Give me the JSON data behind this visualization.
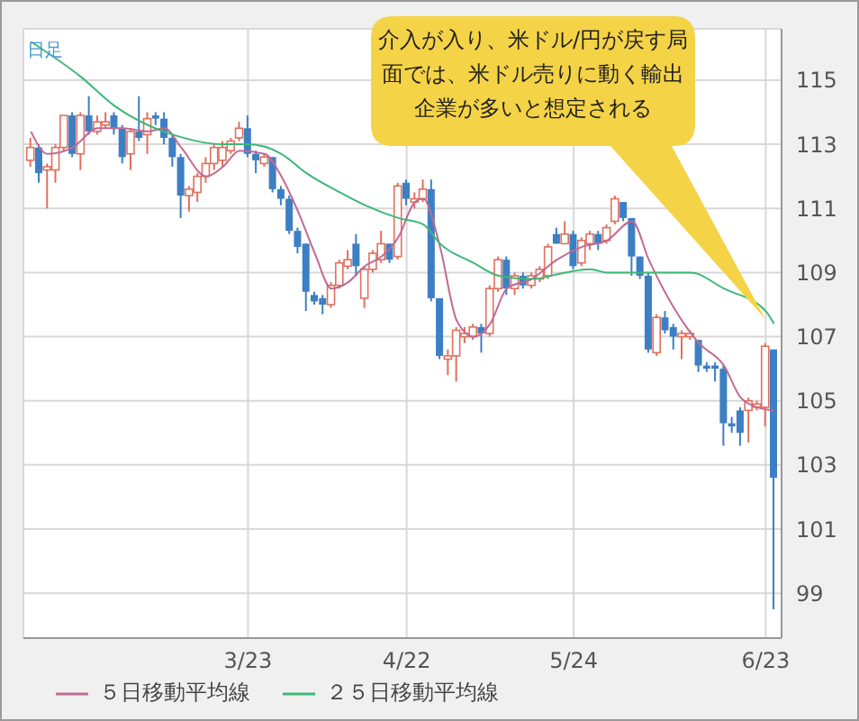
{
  "chart_data": {
    "type": "candlestick",
    "categories": [
      null,
      null,
      null,
      null,
      null,
      null,
      null,
      null,
      null,
      null,
      null,
      null,
      null,
      null,
      null,
      null,
      null,
      null,
      null,
      null,
      null,
      null,
      null,
      null,
      null,
      null,
      "3/23",
      null,
      null,
      null,
      null,
      null,
      null,
      null,
      null,
      null,
      null,
      null,
      null,
      null,
      null,
      null,
      null,
      null,
      null,
      "4/22",
      null,
      null,
      null,
      null,
      null,
      null,
      null,
      null,
      null,
      null,
      null,
      null,
      null,
      null,
      null,
      null,
      null,
      null,
      null,
      "5/24",
      null,
      null,
      null,
      null,
      null,
      null,
      null,
      null,
      null,
      null,
      null,
      null,
      null,
      null,
      null,
      null,
      null,
      null,
      null,
      null,
      null,
      null,
      "6/23",
      null
    ],
    "ohlc": [
      [
        112.5,
        113.2,
        112.3,
        112.9
      ],
      [
        112.9,
        113.0,
        111.8,
        112.1
      ],
      [
        112.2,
        112.4,
        111.0,
        112.3
      ],
      [
        112.2,
        113.0,
        111.8,
        112.9
      ],
      [
        112.9,
        113.9,
        112.8,
        113.9
      ],
      [
        113.9,
        114.0,
        112.6,
        112.7
      ],
      [
        112.7,
        114.0,
        112.2,
        113.9
      ],
      [
        113.9,
        114.5,
        113.3,
        113.4
      ],
      [
        113.4,
        113.9,
        113.3,
        113.7
      ],
      [
        113.6,
        114.0,
        113.5,
        113.7
      ],
      [
        113.9,
        114.0,
        113.3,
        113.5
      ],
      [
        113.5,
        113.6,
        112.4,
        112.6
      ],
      [
        112.7,
        113.5,
        112.2,
        113.4
      ],
      [
        113.4,
        114.5,
        113.1,
        113.2
      ],
      [
        113.3,
        114.0,
        112.7,
        113.8
      ],
      [
        113.9,
        114.0,
        113.6,
        113.8
      ],
      [
        113.8,
        114.0,
        113.0,
        113.2
      ],
      [
        113.2,
        113.3,
        112.3,
        112.6
      ],
      [
        112.6,
        112.7,
        110.7,
        111.4
      ],
      [
        111.4,
        111.7,
        110.9,
        111.6
      ],
      [
        111.5,
        112.1,
        111.2,
        112.0
      ],
      [
        112.0,
        112.6,
        111.8,
        112.4
      ],
      [
        112.4,
        113.0,
        112.2,
        112.9
      ],
      [
        112.5,
        113.1,
        112.3,
        112.9
      ],
      [
        112.8,
        113.2,
        112.7,
        113.1
      ],
      [
        113.2,
        113.7,
        113.1,
        113.5
      ],
      [
        113.5,
        113.9,
        112.6,
        112.7
      ],
      [
        112.7,
        112.8,
        112.1,
        112.5
      ],
      [
        112.4,
        112.7,
        112.3,
        112.6
      ],
      [
        112.6,
        112.6,
        111.5,
        111.6
      ],
      [
        111.6,
        111.7,
        111.1,
        111.3
      ],
      [
        111.3,
        111.4,
        110.2,
        110.3
      ],
      [
        110.3,
        110.4,
        109.6,
        109.8
      ],
      [
        109.9,
        109.9,
        107.8,
        108.4
      ],
      [
        108.3,
        108.4,
        108.0,
        108.1
      ],
      [
        108.2,
        108.3,
        107.7,
        108.0
      ],
      [
        108.0,
        108.7,
        107.9,
        108.6
      ],
      [
        108.6,
        109.4,
        108.5,
        109.3
      ],
      [
        109.2,
        109.7,
        109.1,
        109.4
      ],
      [
        109.9,
        110.2,
        108.9,
        109.2
      ],
      [
        108.2,
        109.2,
        107.9,
        109.1
      ],
      [
        109.1,
        109.7,
        109.0,
        109.6
      ],
      [
        109.4,
        110.3,
        109.3,
        109.9
      ],
      [
        109.9,
        109.9,
        109.3,
        109.4
      ],
      [
        109.5,
        111.8,
        109.4,
        111.7
      ],
      [
        111.8,
        111.9,
        111.1,
        111.3
      ],
      [
        111.2,
        111.5,
        111.0,
        111.3
      ],
      [
        111.3,
        111.9,
        111.2,
        111.6
      ],
      [
        111.6,
        111.9,
        108.1,
        108.2
      ],
      [
        108.2,
        108.2,
        106.3,
        106.4
      ],
      [
        106.3,
        106.6,
        105.8,
        106.4
      ],
      [
        106.4,
        107.3,
        105.6,
        107.2
      ],
      [
        107.0,
        107.3,
        106.8,
        107.1
      ],
      [
        107.0,
        107.4,
        106.9,
        107.3
      ],
      [
        107.3,
        107.4,
        106.5,
        107.1
      ],
      [
        107.1,
        108.6,
        107.0,
        108.5
      ],
      [
        108.5,
        109.5,
        108.4,
        109.4
      ],
      [
        109.4,
        109.5,
        108.3,
        108.5
      ],
      [
        108.5,
        109.0,
        108.3,
        108.9
      ],
      [
        108.9,
        109.0,
        108.5,
        108.6
      ],
      [
        108.6,
        109.0,
        108.5,
        108.9
      ],
      [
        108.8,
        109.2,
        108.7,
        109.1
      ],
      [
        108.9,
        109.9,
        108.8,
        109.8
      ],
      [
        110.2,
        110.4,
        109.9,
        109.9
      ],
      [
        109.9,
        110.6,
        109.9,
        110.2
      ],
      [
        110.2,
        110.3,
        109.1,
        109.2
      ],
      [
        109.3,
        110.1,
        109.2,
        110.0
      ],
      [
        109.9,
        110.3,
        109.7,
        110.2
      ],
      [
        110.2,
        110.3,
        109.7,
        109.9
      ],
      [
        110.0,
        110.5,
        109.9,
        110.4
      ],
      [
        110.6,
        111.4,
        110.5,
        111.3
      ],
      [
        111.2,
        111.2,
        110.6,
        110.7
      ],
      [
        110.7,
        110.7,
        108.9,
        109.5
      ],
      [
        109.5,
        109.5,
        108.8,
        108.9
      ],
      [
        108.9,
        109.0,
        106.5,
        106.6
      ],
      [
        106.5,
        107.7,
        106.4,
        107.6
      ],
      [
        107.6,
        107.8,
        107.1,
        107.2
      ],
      [
        107.3,
        107.4,
        106.6,
        107.0
      ],
      [
        107.0,
        107.2,
        106.3,
        107.1
      ],
      [
        107.0,
        107.2,
        106.9,
        107.1
      ],
      [
        106.9,
        106.9,
        105.9,
        106.1
      ],
      [
        106.1,
        106.2,
        105.9,
        106.0
      ],
      [
        106.1,
        106.2,
        105.6,
        106.0
      ],
      [
        106.0,
        106.1,
        103.6,
        104.3
      ],
      [
        104.3,
        104.5,
        104.0,
        104.2
      ],
      [
        104.7,
        104.8,
        103.6,
        104.0
      ],
      [
        104.7,
        105.1,
        103.7,
        105.0
      ],
      [
        104.8,
        105.0,
        104.7,
        104.9
      ],
      [
        104.8,
        106.8,
        104.2,
        106.7
      ],
      [
        106.6,
        106.6,
        98.5,
        102.6
      ]
    ],
    "series": [
      {
        "type": "line",
        "name": "５日移動平均線",
        "color": "#c06a93",
        "values": [
          113.4,
          null,
          112.7,
          null,
          null,
          112.9,
          null,
          null,
          113.5,
          null,
          null,
          113.5,
          null,
          null,
          113.4,
          null,
          113.5,
          null,
          112.9,
          null,
          null,
          112.0,
          null,
          112.3,
          null,
          112.8,
          null,
          null,
          112.7,
          null,
          112.0,
          null,
          110.9,
          null,
          109.6,
          null,
          108.5,
          null,
          108.7,
          null,
          109.2,
          null,
          109.5,
          null,
          110.1,
          null,
          111.2,
          111.3,
          null,
          109.8,
          null,
          107.5,
          null,
          107.0,
          null,
          107.4,
          null,
          108.5,
          null,
          null,
          108.8,
          null,
          null,
          109.4,
          null,
          null,
          109.8,
          null,
          null,
          110.0,
          null,
          null,
          110.6,
          null,
          109.4,
          null,
          null,
          107.9,
          null,
          null,
          106.8,
          null,
          null,
          106.1,
          null,
          105.1,
          null,
          104.8,
          null,
          104.7
        ]
      },
      {
        "type": "line",
        "name": "２５日移動平均線",
        "color": "#3cb878",
        "values": [
          116.2,
          null,
          null,
          null,
          null,
          null,
          115.1,
          null,
          null,
          null,
          114.2,
          null,
          null,
          null,
          113.6,
          null,
          null,
          113.3,
          null,
          null,
          null,
          null,
          null,
          113.0,
          null,
          null,
          113.0,
          null,
          null,
          null,
          112.7,
          null,
          null,
          112.1,
          null,
          null,
          null,
          111.5,
          null,
          null,
          111.1,
          null,
          null,
          null,
          110.7,
          null,
          null,
          110.5,
          null,
          109.9,
          null,
          null,
          null,
          109.3,
          null,
          null,
          108.9,
          null,
          null,
          null,
          108.8,
          null,
          null,
          null,
          109.0,
          null,
          null,
          109.1,
          null,
          109.0,
          null,
          null,
          null,
          null,
          null,
          null,
          null,
          null,
          null,
          109.0,
          null,
          null,
          null,
          108.5,
          null,
          null,
          null,
          null,
          107.8,
          107.4
        ]
      }
    ],
    "ylim": [
      97.6,
      116.6
    ],
    "yticks": [
      99,
      101,
      103,
      105,
      107,
      109,
      111,
      113,
      115
    ],
    "grid": true,
    "legend": "bottom left",
    "annotations": [
      "日足",
      "介入が入り、米ドル/円が戻す局面では、米ドル売りに動く輸出企業が多いと想定される"
    ]
  }
}
